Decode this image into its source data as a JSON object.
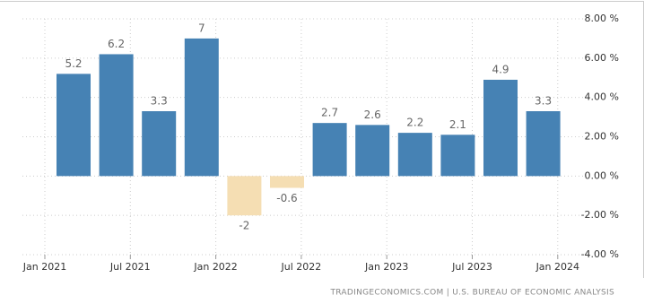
{
  "chart_data": {
    "type": "bar",
    "xticks": [
      "Jan 2021",
      "Jul 2021",
      "Jan 2022",
      "Jul 2022",
      "Jan 2023",
      "Jul 2023",
      "Jan 2024"
    ],
    "values": [
      5.2,
      6.2,
      3.3,
      7,
      -2,
      -0.6,
      2.7,
      2.6,
      2.2,
      2.1,
      4.9,
      3.3
    ],
    "color": "#4682b4",
    "negative_color": "#f5deb3",
    "ylim": [
      -4,
      8
    ],
    "yticks": [
      {
        "value": -4,
        "label": "-4.00 %"
      },
      {
        "value": -2,
        "label": "-2.00 %"
      },
      {
        "value": 0,
        "label": "0.00 %"
      },
      {
        "value": 2,
        "label": "2.00 %"
      },
      {
        "value": 4,
        "label": "4.00 %"
      },
      {
        "value": 6,
        "label": "6.00 %"
      },
      {
        "value": 8,
        "label": "8.00 %"
      }
    ],
    "grid": true,
    "source": "TRADINGECONOMICS.COM | U.S. BUREAU OF ECONOMIC ANALYSIS"
  }
}
